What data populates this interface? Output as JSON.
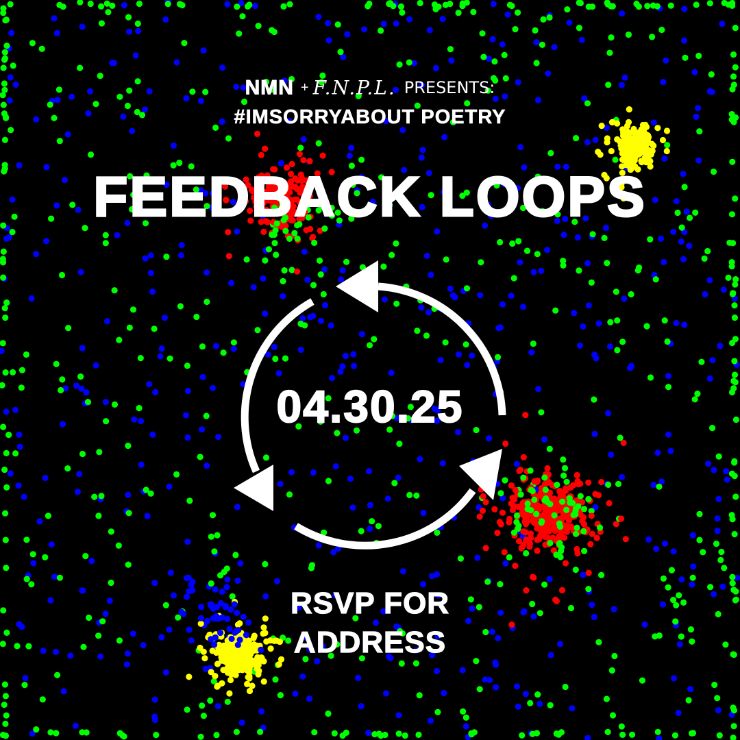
{
  "header": {
    "logo_nmn": "NMN",
    "plus": "+",
    "logo_fnpl": "F.N.P.L.",
    "presents": "PRESENTS:"
  },
  "hashtag": "#IMSORRYABOUT POETRY",
  "title": "FEEDBACK LOOPS",
  "date": "04.30.25",
  "rsvp": {
    "line1": "RSVP FOR",
    "line2": "ADDRESS"
  },
  "colors": {
    "background": "#000000",
    "text": "#ffffff",
    "dot_red": "#ff0000",
    "dot_yellow": "#ffff00",
    "dot_green": "#00ff00",
    "dot_blue": "#0000ff"
  },
  "icons": {
    "loop": "circular-arrows-icon"
  }
}
